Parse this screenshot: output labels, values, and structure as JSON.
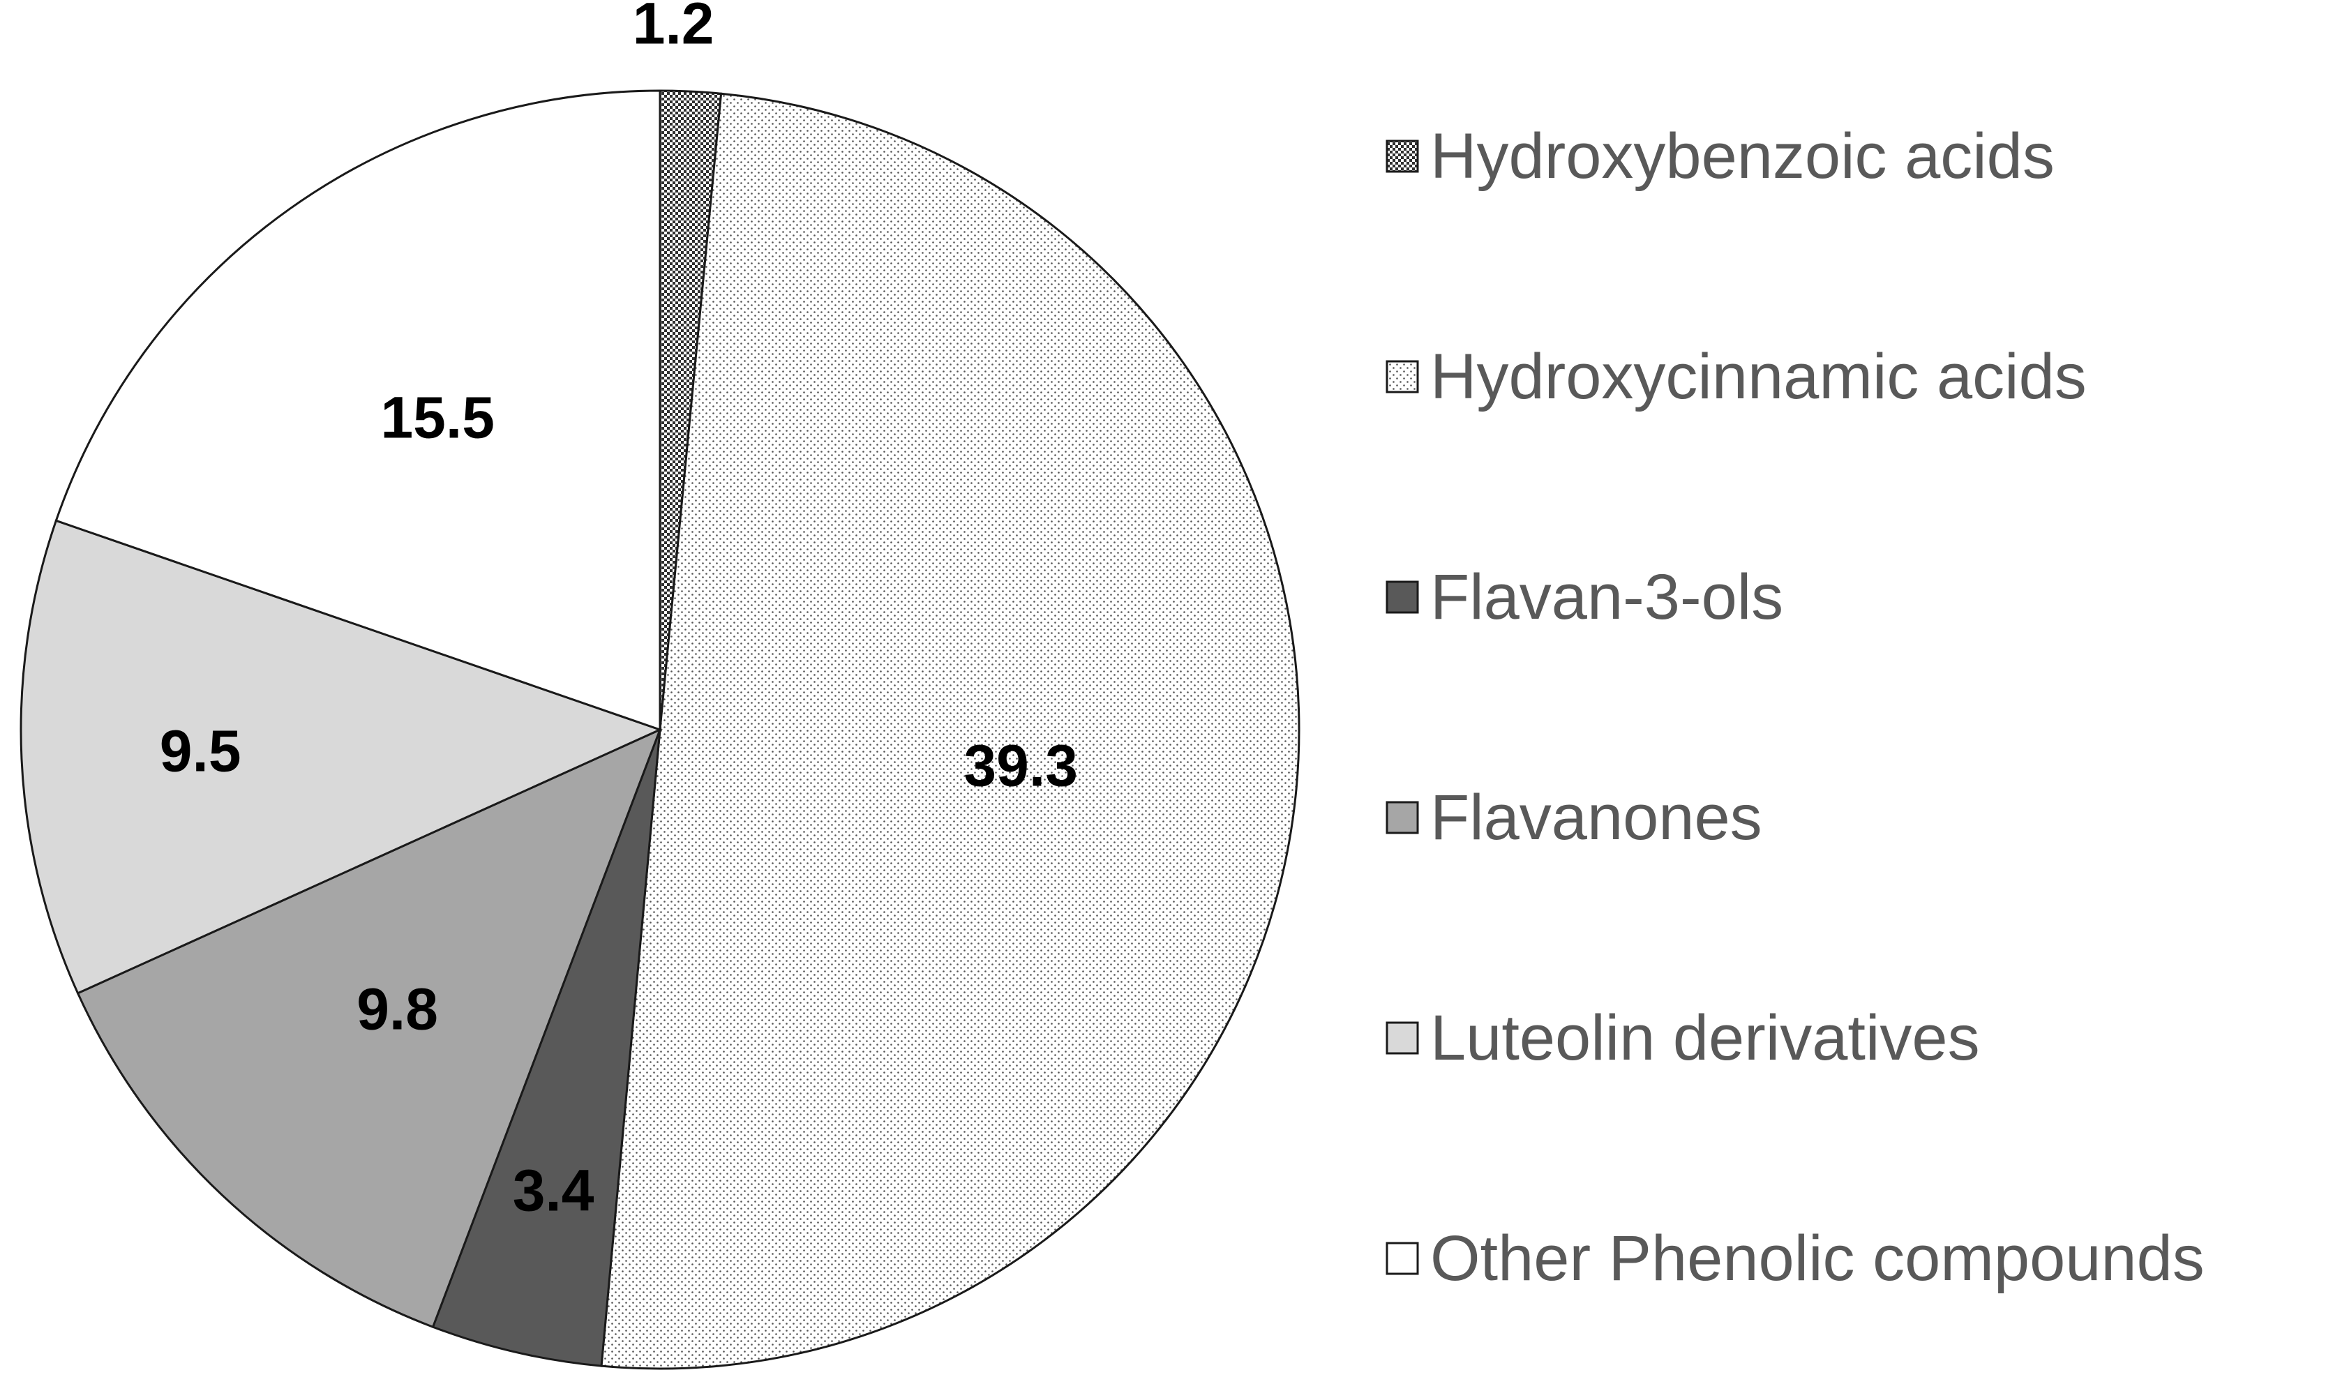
{
  "chart_data": {
    "type": "pie",
    "title": "",
    "categories": [
      "Hydroxybenzoic acids",
      "Hydroxycinnamic acids",
      "Flavan-3-ols",
      "Flavanones",
      "Luteolin derivatives",
      "Other Phenolic compounds"
    ],
    "values": [
      1.2,
      39.3,
      3.4,
      9.8,
      9.5,
      15.5
    ],
    "data_labels": [
      "1.2",
      "39.3",
      "3.4",
      "9.8",
      "9.5",
      "15.5"
    ],
    "fills": [
      {
        "pattern": "dense-dots",
        "base": "#ffffff",
        "dot": "#303030"
      },
      {
        "pattern": "sparse-dots",
        "base": "#ffffff",
        "dot": "#555555"
      },
      {
        "pattern": "solid",
        "color": "#595959"
      },
      {
        "pattern": "solid",
        "color": "#a6a6a6"
      },
      {
        "pattern": "solid",
        "color": "#d9d9d9"
      },
      {
        "pattern": "solid",
        "color": "#ffffff"
      }
    ],
    "start_angle": "12 o'clock",
    "direction": "clockwise",
    "legend": {
      "position": "right"
    }
  }
}
